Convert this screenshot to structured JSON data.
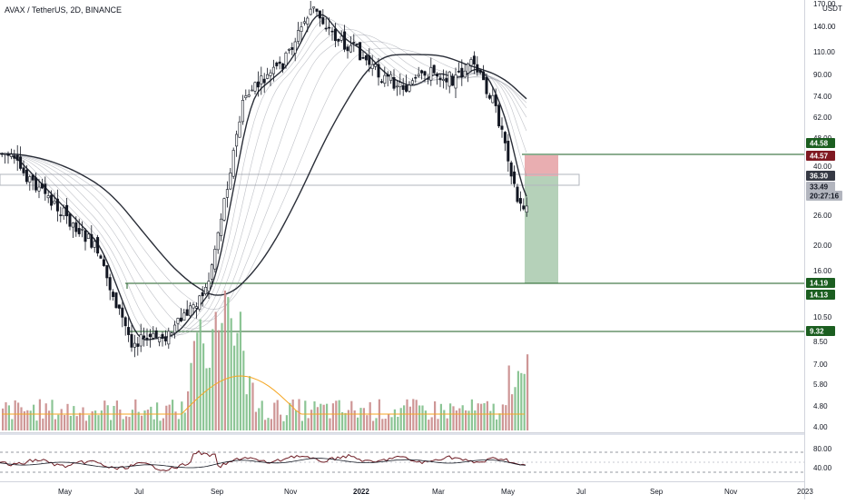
{
  "header": {
    "title": "AVAX / TetherUS, 2D, BINANCE"
  },
  "price_axis": {
    "currency": "USDT",
    "ticks": [
      "170.00",
      "140.00",
      "110.00",
      "90.00",
      "74.00",
      "62.00",
      "48.00",
      "40.00",
      "26.00",
      "20.00",
      "16.00",
      "10.50",
      "8.50",
      "7.00",
      "5.80",
      "4.80",
      "4.00"
    ],
    "top_label": "170.00"
  },
  "volume_axis": {
    "ticks": [
      "8.50",
      "7.00",
      "5.80",
      "4.80",
      "4.00"
    ]
  },
  "oscillator_axis": {
    "ticks": [
      "80.00",
      "40.00"
    ]
  },
  "time_axis": {
    "labels": [
      "May",
      "Jul",
      "Sep",
      "Nov",
      "2022",
      "Mar",
      "May",
      "Jul",
      "Sep",
      "Nov",
      "2023"
    ]
  },
  "price_badges": [
    {
      "text": "44.58",
      "color": "#1b5e20"
    },
    {
      "text": "44.57",
      "color": "#801922"
    },
    {
      "text": "36.30",
      "color": "#363a45"
    },
    {
      "text": "33.49",
      "color": "#b2b5be"
    },
    {
      "text": "20:27:16",
      "color": "#b2b5be"
    },
    {
      "text": "14.19",
      "color": "#1b5e20"
    },
    {
      "text": "14.13",
      "color": "#1b5e20"
    },
    {
      "text": "9.32",
      "color": "#1b5e20"
    }
  ],
  "colors": {
    "up": "#26a69a",
    "down": "#ef5350",
    "candle": "#131722",
    "level_line": "#1b5e20",
    "stop_zone": "#e5a0a3",
    "target_zone": "#a8c9ad",
    "volume_ma": "#f5a623",
    "oscillator_line": "#6d1b23"
  },
  "chart_data": {
    "type": "candlestick",
    "title": "AVAX / TetherUS, 2D, BINANCE",
    "y_scale": "log",
    "ylim": [
      4.0,
      170.0
    ],
    "x_range": [
      "2021-04",
      "2023-01"
    ],
    "levels": [
      44.58,
      14.19,
      9.32
    ],
    "position": {
      "entry": 36.3,
      "stop": 44.57,
      "target": 14.13,
      "last_price": 33.49
    },
    "time_points": [
      "2021-03-21",
      "2021-05-01",
      "2021-06-01",
      "2021-07-01",
      "2021-08-01",
      "2021-09-01",
      "2021-10-01",
      "2021-11-01",
      "2021-11-25",
      "2021-12-15",
      "2022-01-01",
      "2022-01-20",
      "2022-02-10",
      "2022-03-01",
      "2022-03-20",
      "2022-04-05",
      "2022-04-20",
      "2022-05-01",
      "2022-05-12"
    ],
    "close_approx": [
      45,
      30,
      22,
      10.5,
      11,
      16,
      70,
      90,
      140,
      110,
      100,
      82,
      75,
      85,
      80,
      90,
      70,
      50,
      30
    ]
  }
}
